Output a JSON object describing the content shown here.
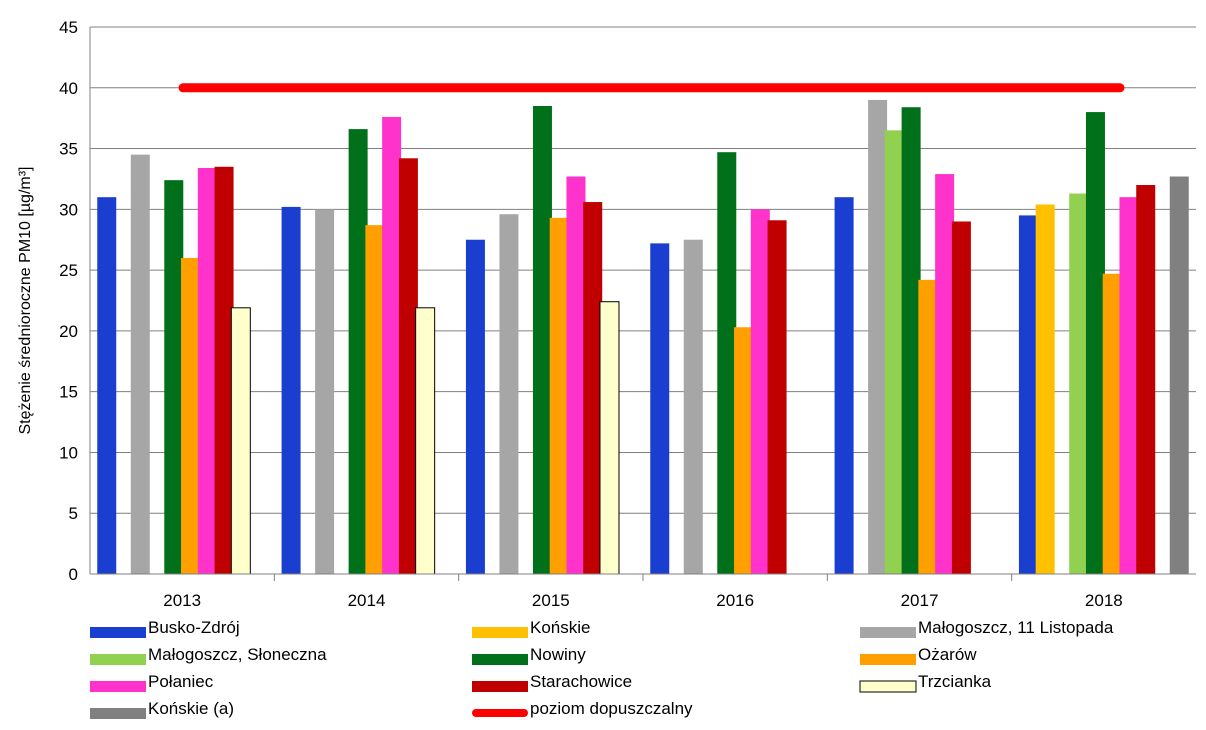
{
  "chart_data": {
    "type": "bar",
    "title": "",
    "xlabel": "",
    "ylabel": "Stężenie średnioroczne PM10 [µg/m³]",
    "ylim": [
      0,
      45
    ],
    "yticks": [
      0,
      5,
      10,
      15,
      20,
      25,
      30,
      35,
      40,
      45
    ],
    "grid": true,
    "legend_position": "bottom",
    "categories": [
      "2013",
      "2014",
      "2015",
      "2016",
      "2017",
      "2018"
    ],
    "series": [
      {
        "name": "Busko-Zdrój",
        "color": "#1a3fd0",
        "values": [
          31.0,
          30.2,
          27.5,
          27.2,
          31.0,
          29.5
        ]
      },
      {
        "name": "Końskie",
        "color": "#ffc000",
        "values": [
          null,
          null,
          null,
          null,
          null,
          30.4
        ]
      },
      {
        "name": "Małogoszcz, 11 Listopada",
        "color": "#a6a6a6",
        "values": [
          34.5,
          30.0,
          29.6,
          27.5,
          39.0,
          null
        ]
      },
      {
        "name": "Małogoszcz, Słoneczna",
        "color": "#92d050",
        "values": [
          null,
          null,
          null,
          null,
          36.5,
          31.3
        ]
      },
      {
        "name": "Nowiny",
        "color": "#00701a",
        "values": [
          32.4,
          36.6,
          38.5,
          34.7,
          38.4,
          38.0
        ]
      },
      {
        "name": "Ożarów",
        "color": "#ffa000",
        "values": [
          26.0,
          28.7,
          29.3,
          20.3,
          24.2,
          24.7
        ]
      },
      {
        "name": "Połaniec",
        "color": "#ff33cc",
        "values": [
          33.4,
          37.6,
          32.7,
          30.0,
          32.9,
          31.0
        ]
      },
      {
        "name": "Starachowice",
        "color": "#c00000",
        "values": [
          33.5,
          34.2,
          30.6,
          29.1,
          29.0,
          32.0
        ]
      },
      {
        "name": "Trzcianka",
        "color": "#ffffcc",
        "values": [
          21.9,
          21.9,
          22.4,
          null,
          null,
          null
        ]
      },
      {
        "name": "Końskie (a)",
        "color": "#808080",
        "values": [
          null,
          null,
          null,
          null,
          null,
          32.7
        ]
      }
    ],
    "reference_line": {
      "name": "poziom dopuszczalny",
      "value": 40,
      "color": "#ff0000"
    }
  }
}
